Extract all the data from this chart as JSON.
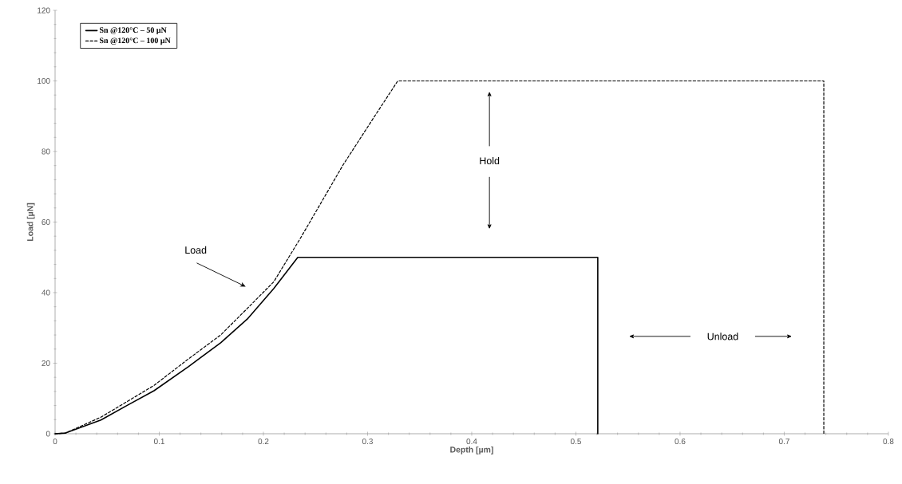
{
  "chart_data": {
    "type": "line",
    "xlabel": "Depth [µm]",
    "ylabel": "Load [µN]",
    "xlim": [
      0,
      0.8
    ],
    "ylim": [
      0,
      120
    ],
    "xticks": [
      0,
      0.1,
      0.2,
      0.3,
      0.4,
      0.5,
      0.6,
      0.7,
      0.8
    ],
    "yticks": [
      0,
      20,
      40,
      60,
      80,
      100,
      120
    ],
    "grid": false,
    "legend": "top left",
    "marker": "none",
    "series": [
      {
        "name": "Sn @120°C – 50 µN",
        "color": "#000000",
        "line_style": "solid",
        "x": [
          0,
          0.01,
          0.044,
          0.0696,
          0.095,
          0.128,
          0.159,
          0.1845,
          0.21,
          0.233,
          0.521,
          0.521
        ],
        "values": [
          0,
          0.2,
          3.9,
          8.1,
          12.2,
          19.0,
          25.8,
          32.5,
          41.2,
          50,
          50,
          0
        ]
      },
      {
        "name": "Sn @120°C – 100 µN",
        "color": "#000000",
        "line_style": "dashed",
        "x": [
          0,
          0.01,
          0.044,
          0.0696,
          0.095,
          0.128,
          0.159,
          0.1845,
          0.21,
          0.2357,
          0.2765,
          0.3046,
          0.329,
          0.738,
          0.738
        ],
        "values": [
          0,
          0.2,
          4.7,
          9.2,
          13.7,
          21.2,
          28.0,
          35.5,
          43.1,
          55.5,
          76.2,
          89.0,
          100,
          100,
          0
        ]
      }
    ],
    "annotations": [
      "Load",
      "Hold",
      "Unload"
    ]
  }
}
